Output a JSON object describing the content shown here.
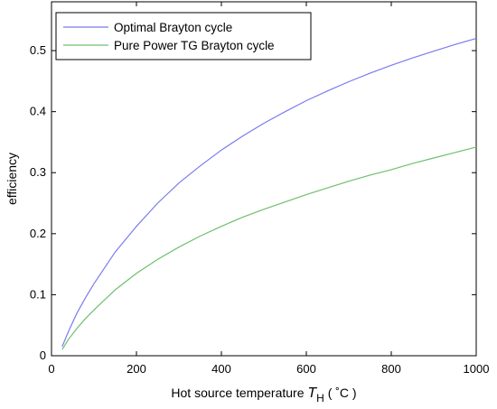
{
  "chart_data": {
    "type": "line",
    "xlabel": {
      "prefix": "Hot source temperature ",
      "symbol": "T",
      "subscript": "H",
      "unit": " ( ˚C )"
    },
    "ylabel": "efficiency",
    "xlim": [
      0,
      1000
    ],
    "ylim": [
      0,
      0.58
    ],
    "xticks": [
      0,
      200,
      400,
      600,
      800,
      1000
    ],
    "yticks": [
      0,
      0.1,
      0.2,
      0.3,
      0.4,
      0.5
    ],
    "grid": false,
    "legend_position": "top-left",
    "series": [
      {
        "name": "Optimal Brayton cycle",
        "color": "#7b7bf0",
        "x": [
          25,
          40,
          60,
          80,
          100,
          150,
          200,
          250,
          300,
          350,
          400,
          450,
          500,
          550,
          600,
          650,
          700,
          750,
          800,
          850,
          900,
          950,
          1000
        ],
        "y": [
          0.015,
          0.04,
          0.07,
          0.095,
          0.118,
          0.17,
          0.212,
          0.25,
          0.283,
          0.311,
          0.337,
          0.36,
          0.381,
          0.4,
          0.418,
          0.434,
          0.449,
          0.463,
          0.476,
          0.488,
          0.499,
          0.51,
          0.52
        ]
      },
      {
        "name": "Pure Power TG Brayton cycle",
        "color": "#6fbf6f",
        "x": [
          25,
          40,
          60,
          80,
          100,
          150,
          200,
          250,
          300,
          350,
          400,
          450,
          500,
          550,
          600,
          650,
          700,
          750,
          800,
          850,
          900,
          950,
          1000
        ],
        "y": [
          0.01,
          0.027,
          0.045,
          0.061,
          0.075,
          0.108,
          0.135,
          0.158,
          0.178,
          0.196,
          0.212,
          0.227,
          0.24,
          0.252,
          0.264,
          0.275,
          0.286,
          0.296,
          0.305,
          0.315,
          0.324,
          0.333,
          0.342
        ]
      }
    ]
  }
}
